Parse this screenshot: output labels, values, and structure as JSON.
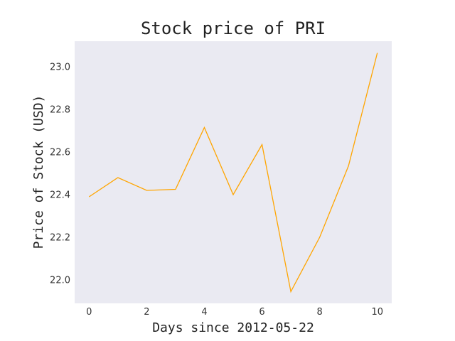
{
  "chart_data": {
    "type": "line",
    "title": "Stock price of PRI",
    "xlabel": "Days since 2012-05-22",
    "ylabel": "Price of Stock (USD)",
    "x": [
      0,
      1,
      2,
      3,
      4,
      5,
      6,
      7,
      8,
      9,
      10
    ],
    "series": [
      {
        "values": [
          22.39,
          22.48,
          22.42,
          22.425,
          22.715,
          22.4,
          22.635,
          21.945,
          22.2,
          22.535,
          23.065
        ]
      }
    ],
    "xlim": [
      -0.5,
      10.5
    ],
    "ylim": [
      21.89,
      23.12
    ],
    "xticks": [
      "0",
      "2",
      "4",
      "6",
      "8",
      "10"
    ],
    "yticks": [
      "22.0",
      "22.2",
      "22.4",
      "22.6",
      "22.8",
      "23.0"
    ],
    "grid": false,
    "colors": {
      "line": "#FFA500",
      "plot_background": "#EAEAF2"
    }
  }
}
